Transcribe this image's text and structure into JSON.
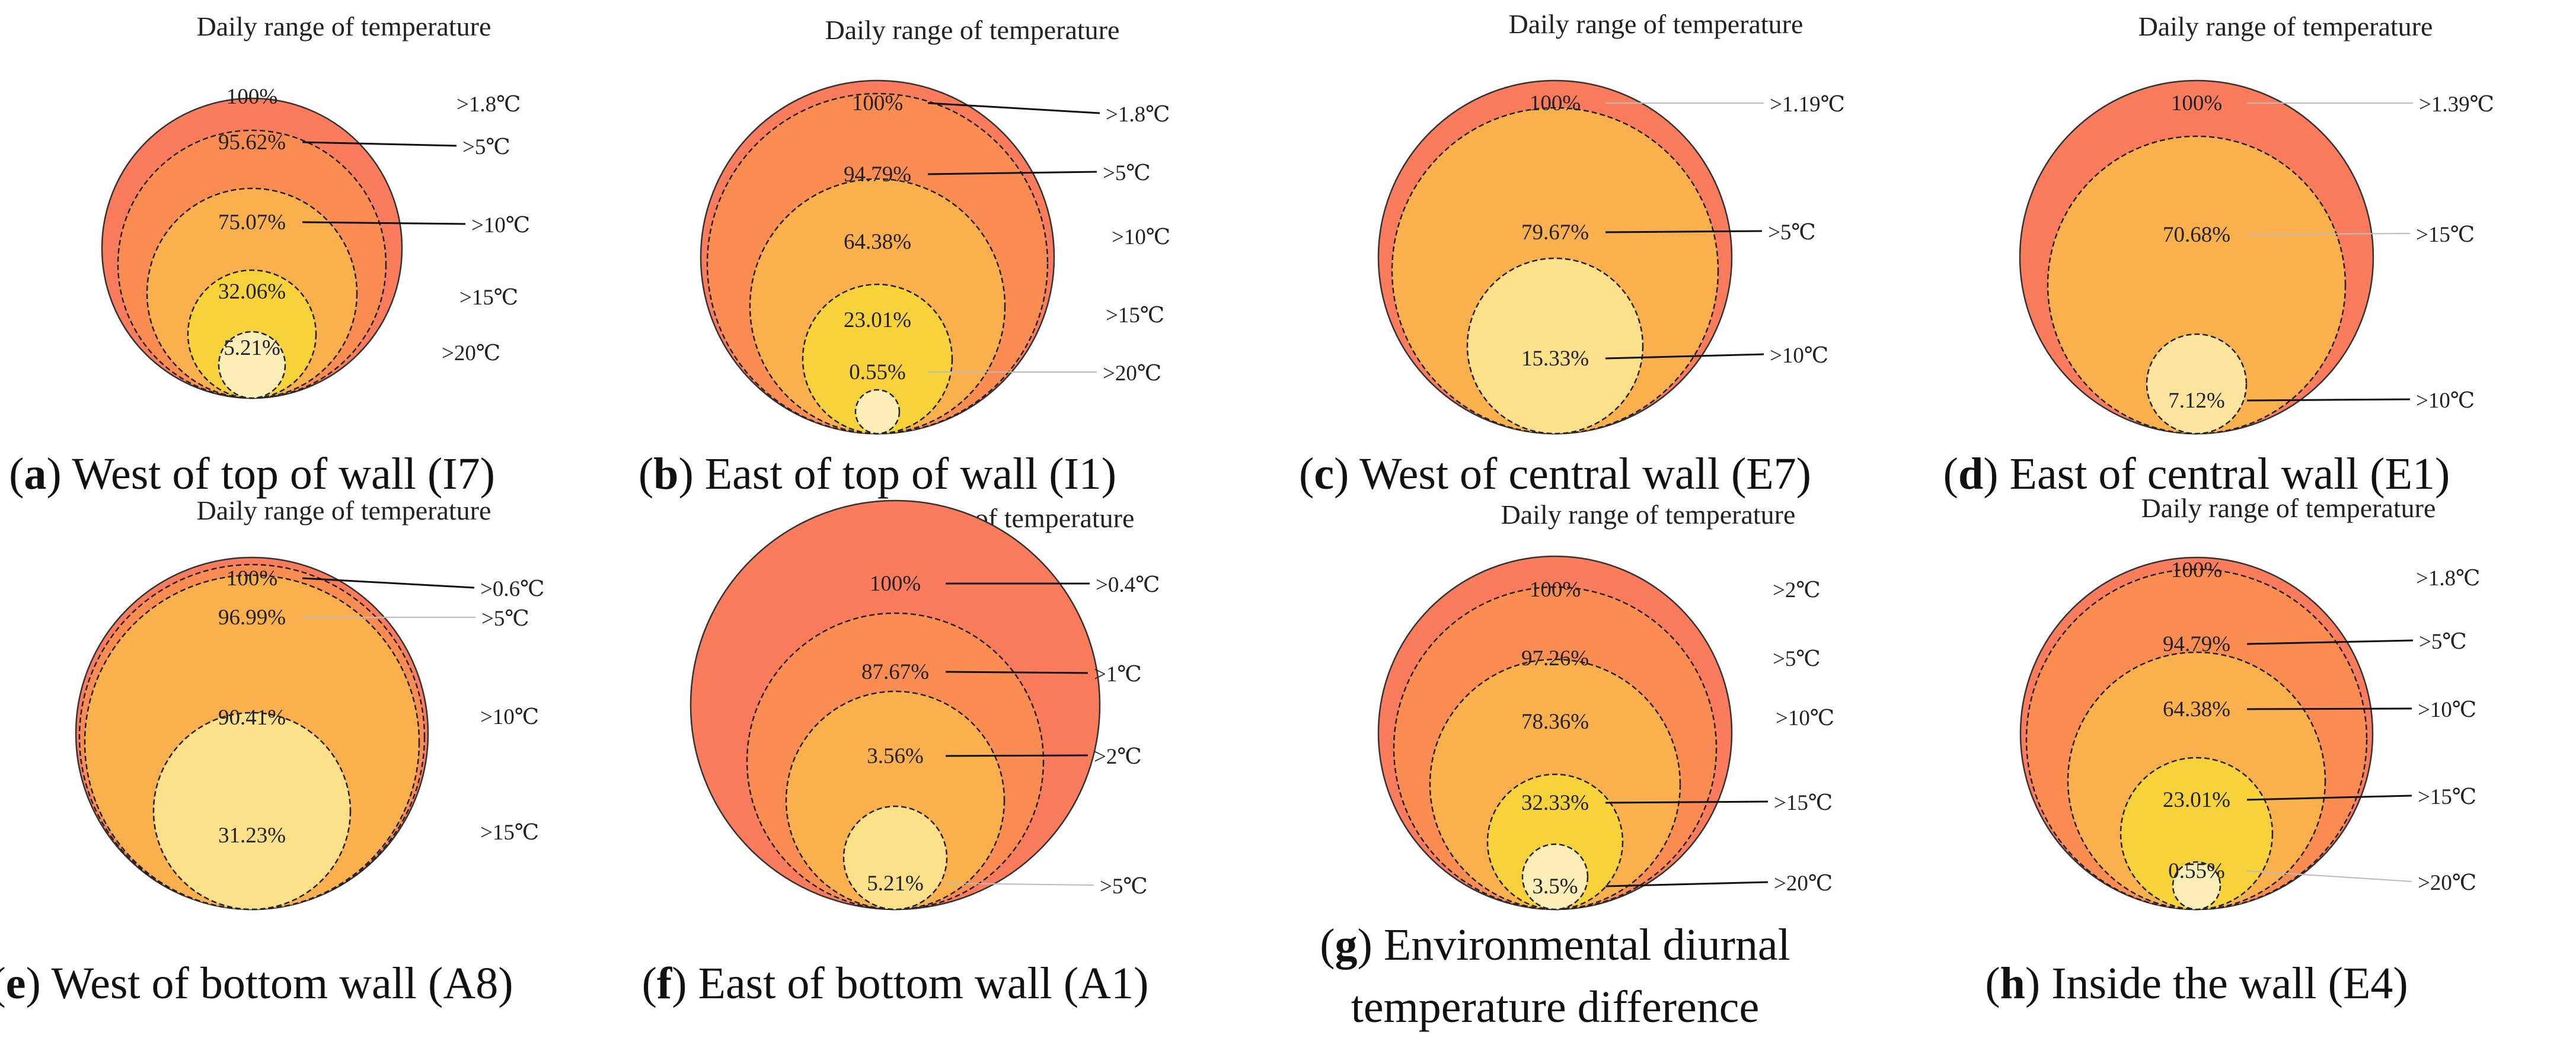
{
  "chart_data": [
    {
      "type": "nested-circles",
      "label": "a",
      "caption": "West of top of wall (I7)",
      "title": "Daily range of temperature",
      "levels": [
        {
          "threshold": ">1.8℃",
          "percent": 100,
          "percent_label": "100%",
          "color": "#fb7c5c"
        },
        {
          "threshold": ">5℃",
          "percent": 95.62,
          "percent_label": "95.62%",
          "color": "#fb8c52"
        },
        {
          "threshold": ">10℃",
          "percent": 75.07,
          "percent_label": "75.07%",
          "color": "#fbb04e"
        },
        {
          "threshold": ">15℃",
          "percent": 32.06,
          "percent_label": "32.06%",
          "color": "#f8d23a"
        },
        {
          "threshold": ">20℃",
          "percent": 5.21,
          "percent_label": "5.21%",
          "color": "#fdeeb8"
        }
      ]
    },
    {
      "type": "nested-circles",
      "label": "b",
      "caption": "East of top of wall (I1)",
      "title": "Daily range of temperature",
      "levels": [
        {
          "threshold": ">1.8℃",
          "percent": 100,
          "percent_label": "100%",
          "color": "#fb7c5c"
        },
        {
          "threshold": ">5℃",
          "percent": 94.79,
          "percent_label": "94.79%",
          "color": "#fb8c52"
        },
        {
          "threshold": ">10℃",
          "percent": 64.38,
          "percent_label": "64.38%",
          "color": "#fbb04e"
        },
        {
          "threshold": ">15℃",
          "percent": 23.01,
          "percent_label": "23.01%",
          "color": "#f8d23a"
        },
        {
          "threshold": ">20℃",
          "percent": 0.55,
          "percent_label": "0.55%",
          "color": "#fdeeb8"
        }
      ]
    },
    {
      "type": "nested-circles",
      "label": "c",
      "caption": "West of central wall (E7)",
      "title": "Daily range of temperature",
      "levels": [
        {
          "threshold": ">1.19℃",
          "percent": 100,
          "percent_label": "100%",
          "color": "#fb7c5c"
        },
        {
          "threshold": ">5℃",
          "percent": 79.67,
          "percent_label": "79.67%",
          "color": "#fbb04e"
        },
        {
          "threshold": ">10℃",
          "percent": 15.33,
          "percent_label": "15.33%",
          "color": "#fde08a"
        }
      ]
    },
    {
      "type": "nested-circles",
      "label": "d",
      "caption": "East of central wall (E1)",
      "title": "Daily range of temperature",
      "levels": [
        {
          "threshold": ">1.39℃",
          "percent": 100,
          "percent_label": "100%",
          "color": "#fb7c5c"
        },
        {
          "threshold": ">15℃",
          "percent": 70.68,
          "percent_label": "70.68%",
          "color": "#fbb04e"
        },
        {
          "threshold": ">10℃",
          "percent": 7.12,
          "percent_label": "7.12%",
          "color": "#fde5a0"
        }
      ]
    },
    {
      "type": "nested-circles",
      "label": "e",
      "caption": "West of bottom wall (A8)",
      "title": "Daily range of temperature",
      "levels": [
        {
          "threshold": ">0.6℃",
          "percent": 100,
          "percent_label": "100%",
          "color": "#fb7c5c"
        },
        {
          "threshold": ">5℃",
          "percent": 96.99,
          "percent_label": "96.99%",
          "color": "#fb8c52"
        },
        {
          "threshold": ">10℃",
          "percent": 90.41,
          "percent_label": "90.41%",
          "color": "#fbb04e"
        },
        {
          "threshold": ">15℃",
          "percent": 31.23,
          "percent_label": "31.23%",
          "color": "#fde08a"
        }
      ]
    },
    {
      "type": "nested-circles",
      "label": "f",
      "caption": "East of bottom wall (A1)",
      "title": "Daily range of temperature",
      "levels": [
        {
          "threshold": ">0.4℃",
          "percent": 100,
          "percent_label": "100%",
          "color": "#fb7c5c"
        },
        {
          "threshold": ">1℃",
          "percent": 87.67,
          "percent_label": "87.67%",
          "color": "#fb8c52"
        },
        {
          "threshold": ">2℃",
          "percent": 3.56,
          "percent_label": "3.56%",
          "color": "#fbb04e"
        },
        {
          "threshold": ">5℃",
          "percent": 5.21,
          "percent_label": "5.21%",
          "color": "#fde08a"
        }
      ]
    },
    {
      "type": "nested-circles",
      "label": "g",
      "caption_lines": [
        "Environmental diurnal",
        "temperature difference"
      ],
      "title": "Daily range of temperature",
      "levels": [
        {
          "threshold": ">2℃",
          "percent": 100,
          "percent_label": "100%",
          "color": "#fb7c5c"
        },
        {
          "threshold": ">5℃",
          "percent": 97.26,
          "percent_label": "97.26%",
          "color": "#fb8c52"
        },
        {
          "threshold": ">10℃",
          "percent": 78.36,
          "percent_label": "78.36%",
          "color": "#fbb04e"
        },
        {
          "threshold": ">15℃",
          "percent": 32.33,
          "percent_label": "32.33%",
          "color": "#f8d23a"
        },
        {
          "threshold": ">20℃",
          "percent": 3.5,
          "percent_label": "3.5%",
          "color": "#fdeeb8"
        }
      ]
    },
    {
      "type": "nested-circles",
      "label": "h",
      "caption": "Inside the wall (E4)",
      "title": "Daily range of temperature",
      "levels": [
        {
          "threshold": ">1.8℃",
          "percent": 100,
          "percent_label": "100%",
          "color": "#fb7c5c"
        },
        {
          "threshold": ">5℃",
          "percent": 94.79,
          "percent_label": "94.79%",
          "color": "#fb8c52"
        },
        {
          "threshold": ">10℃",
          "percent": 64.38,
          "percent_label": "64.38%",
          "color": "#fbb04e"
        },
        {
          "threshold": ">15℃",
          "percent": 23.01,
          "percent_label": "23.01%",
          "color": "#f8d23a"
        },
        {
          "threshold": ">20℃",
          "percent": 0.55,
          "percent_label": "0.55%",
          "color": "#fdeeb8"
        }
      ]
    }
  ]
}
